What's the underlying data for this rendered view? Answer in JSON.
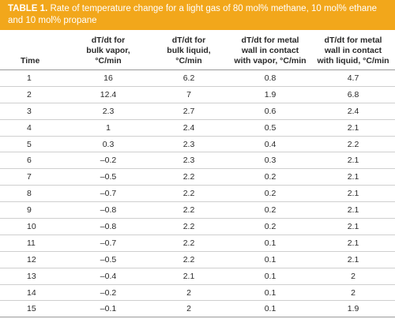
{
  "table": {
    "title_label": "TABLE 1.",
    "title_text": " Rate of temperature change for a light gas of 80 mol% methane, 10 mol% ethane and 10 mol% propane",
    "accent_color": "#f2a71b",
    "headers": [
      "Time",
      "dT/dt for\nbulk vapor,\n°C/min",
      "dT/dt for\nbulk liquid,\n°C/min",
      "dT/dt for metal\nwall in contact\nwith vapor, °C/min",
      "dT/dt for metal\nwall in contact\nwith liquid, °C/min"
    ],
    "rows": [
      [
        "1",
        "16",
        "6.2",
        "0.8",
        "4.7"
      ],
      [
        "2",
        "12.4",
        "7",
        "1.9",
        "6.8"
      ],
      [
        "3",
        "2.3",
        "2.7",
        "0.6",
        "2.4"
      ],
      [
        "4",
        "1",
        "2.4",
        "0.5",
        "2.1"
      ],
      [
        "5",
        "0.3",
        "2.3",
        "0.4",
        "2.2"
      ],
      [
        "6",
        "–0.2",
        "2.3",
        "0.3",
        "2.1"
      ],
      [
        "7",
        "–0.5",
        "2.2",
        "0.2",
        "2.1"
      ],
      [
        "8",
        "–0.7",
        "2.2",
        "0.2",
        "2.1"
      ],
      [
        "9",
        "–0.8",
        "2.2",
        "0.2",
        "2.1"
      ],
      [
        "10",
        "–0.8",
        "2.2",
        "0.2",
        "2.1"
      ],
      [
        "11",
        "–0.7",
        "2.2",
        "0.1",
        "2.1"
      ],
      [
        "12",
        "–0.5",
        "2.2",
        "0.1",
        "2.1"
      ],
      [
        "13",
        "–0.4",
        "2.1",
        "0.1",
        "2"
      ],
      [
        "14",
        "–0.2",
        "2",
        "0.1",
        "2"
      ],
      [
        "15",
        "–0.1",
        "2",
        "0.1",
        "1.9"
      ]
    ]
  }
}
